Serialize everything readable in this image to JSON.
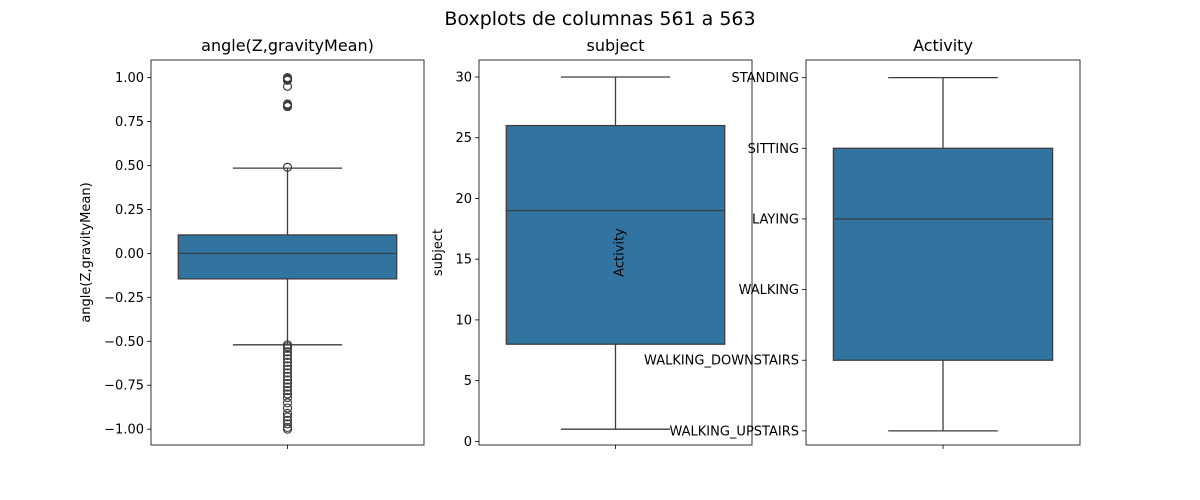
{
  "suptitle": "Boxplots de columnas 561 a 563",
  "colors": {
    "box_fill": "#3274a1",
    "line": "#3d3d3d",
    "frame": "#000000"
  },
  "chart_data": [
    {
      "type": "box",
      "title": "angle(Z,gravityMean)",
      "ylabel": "angle(Z,gravityMean)",
      "ylim": [
        -1.09,
        1.1
      ],
      "yticks": [
        -1.0,
        -0.75,
        -0.5,
        -0.25,
        0.0,
        0.25,
        0.5,
        0.75,
        1.0
      ],
      "ytick_labels": [
        "−1.00",
        "−0.75",
        "−0.50",
        "−0.25",
        "0.00",
        "0.25",
        "0.50",
        "0.75",
        "1.00"
      ],
      "box": {
        "whisker_low": -0.52,
        "q1": -0.145,
        "median": 0.0,
        "q3": 0.105,
        "whisker_high": 0.485
      },
      "outliers": [
        1.0,
        0.995,
        0.99,
        0.985,
        0.95,
        0.85,
        0.845,
        0.84,
        0.835,
        0.49,
        -0.52,
        -0.53,
        -0.54,
        -0.56,
        -0.58,
        -0.6,
        -0.62,
        -0.64,
        -0.66,
        -0.68,
        -0.7,
        -0.72,
        -0.74,
        -0.76,
        -0.78,
        -0.8,
        -0.82,
        -0.85,
        -0.88,
        -0.91,
        -0.93,
        -0.95,
        -0.97,
        -0.99,
        -1.0
      ]
    },
    {
      "type": "box",
      "title": "subject",
      "ylabel": "subject",
      "overlay_label": "Activity",
      "ylim": [
        -0.3,
        31.4
      ],
      "yticks": [
        0,
        5,
        10,
        15,
        20,
        25,
        30
      ],
      "ytick_labels": [
        "0",
        "5",
        "10",
        "15",
        "20",
        "25",
        "30"
      ],
      "box": {
        "whisker_low": 1,
        "q1": 8,
        "median": 19,
        "q3": 26,
        "whisker_high": 30
      },
      "outliers": []
    },
    {
      "type": "box",
      "title": "Activity",
      "ylabel": "",
      "ylim": [
        -0.2,
        5.25
      ],
      "yticks": [
        0,
        1,
        2,
        3,
        4,
        5
      ],
      "ytick_labels": [
        "WALKING_UPSTAIRS",
        "WALKING_DOWNSTAIRS",
        "WALKING",
        "LAYING",
        "SITTING",
        "STANDING"
      ],
      "box": {
        "whisker_low": 0,
        "q1": 1,
        "median": 3,
        "q3": 4,
        "whisker_high": 5
      },
      "outliers": []
    }
  ]
}
